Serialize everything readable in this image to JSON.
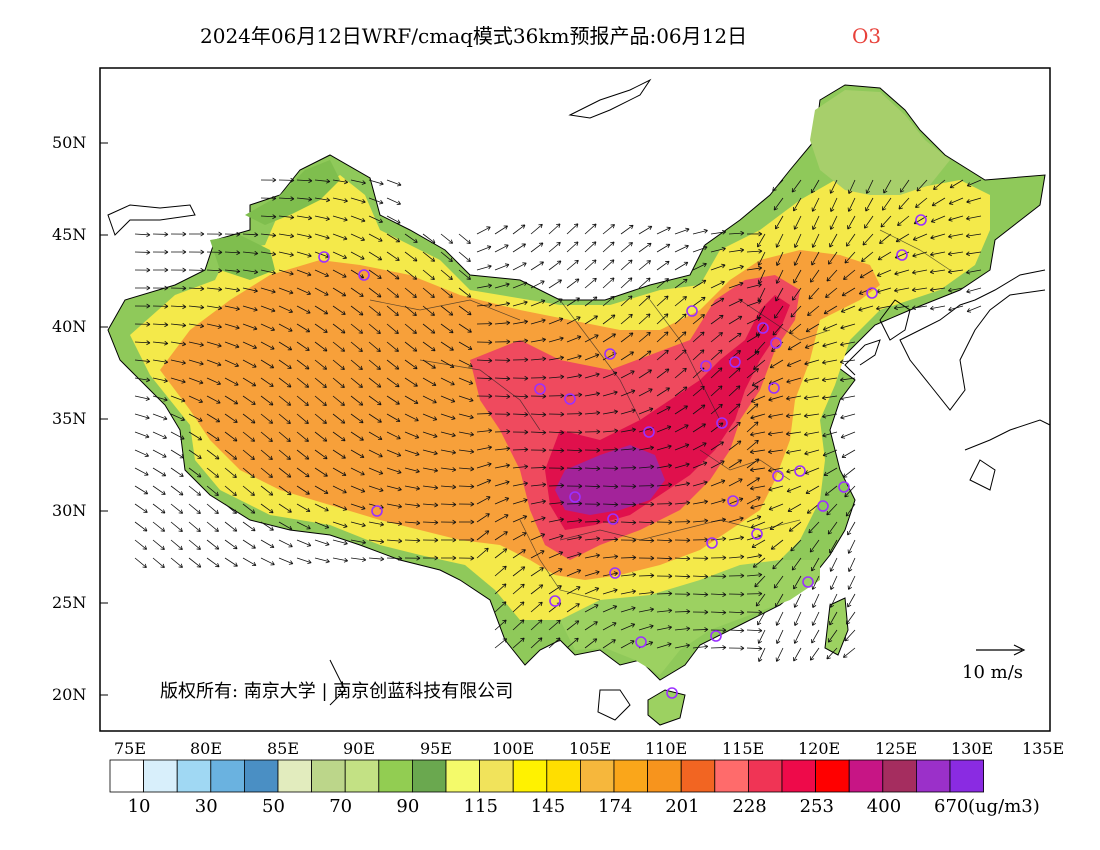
{
  "title": {
    "main": "2024年06月12日WRF/cmaq模式36km预报产品:06月12日",
    "species": "O3",
    "species_color": "#e8413a"
  },
  "map": {
    "lon_ticks": [
      "75E",
      "80E",
      "85E",
      "90E",
      "95E",
      "100E",
      "105E",
      "110E",
      "115E",
      "120E",
      "125E",
      "130E",
      "135E"
    ],
    "lat_ticks": [
      "50N",
      "45N",
      "40N",
      "35N",
      "30N",
      "25N",
      "20N"
    ],
    "copyright": "版权所有: 南京大学 | 南京创蓝科技有限公司",
    "wind_scale_label": "10 m/s",
    "colors": {
      "low": "#6aa84f",
      "mid": "#f0e442",
      "orange": "#f7941d",
      "red": "#ee2a5a",
      "purple": "#b5159a"
    }
  },
  "colorbar": {
    "colors": [
      "#ffffff",
      "#d8effb",
      "#a0d8f3",
      "#6ab2e0",
      "#4a8fc4",
      "#e2ecbe",
      "#bcd68a",
      "#c3e184",
      "#92cd52",
      "#6aa84f",
      "#f4fa6a",
      "#f1e35b",
      "#fff200",
      "#ffde00",
      "#f6b73c",
      "#faa61a",
      "#f7941d",
      "#f26522",
      "#ff6b6b",
      "#f03455",
      "#ee0a4a",
      "#ff0000",
      "#c71585",
      "#a52d5f",
      "#9b30c9",
      "#8a2be2"
    ],
    "labels": [
      "10",
      "30",
      "50",
      "70",
      "90",
      "115",
      "145",
      "174",
      "201",
      "228",
      "253",
      "400",
      "670"
    ],
    "unit": "(ug/m3)"
  },
  "stations": {
    "marker_color": "#9b30ff"
  }
}
